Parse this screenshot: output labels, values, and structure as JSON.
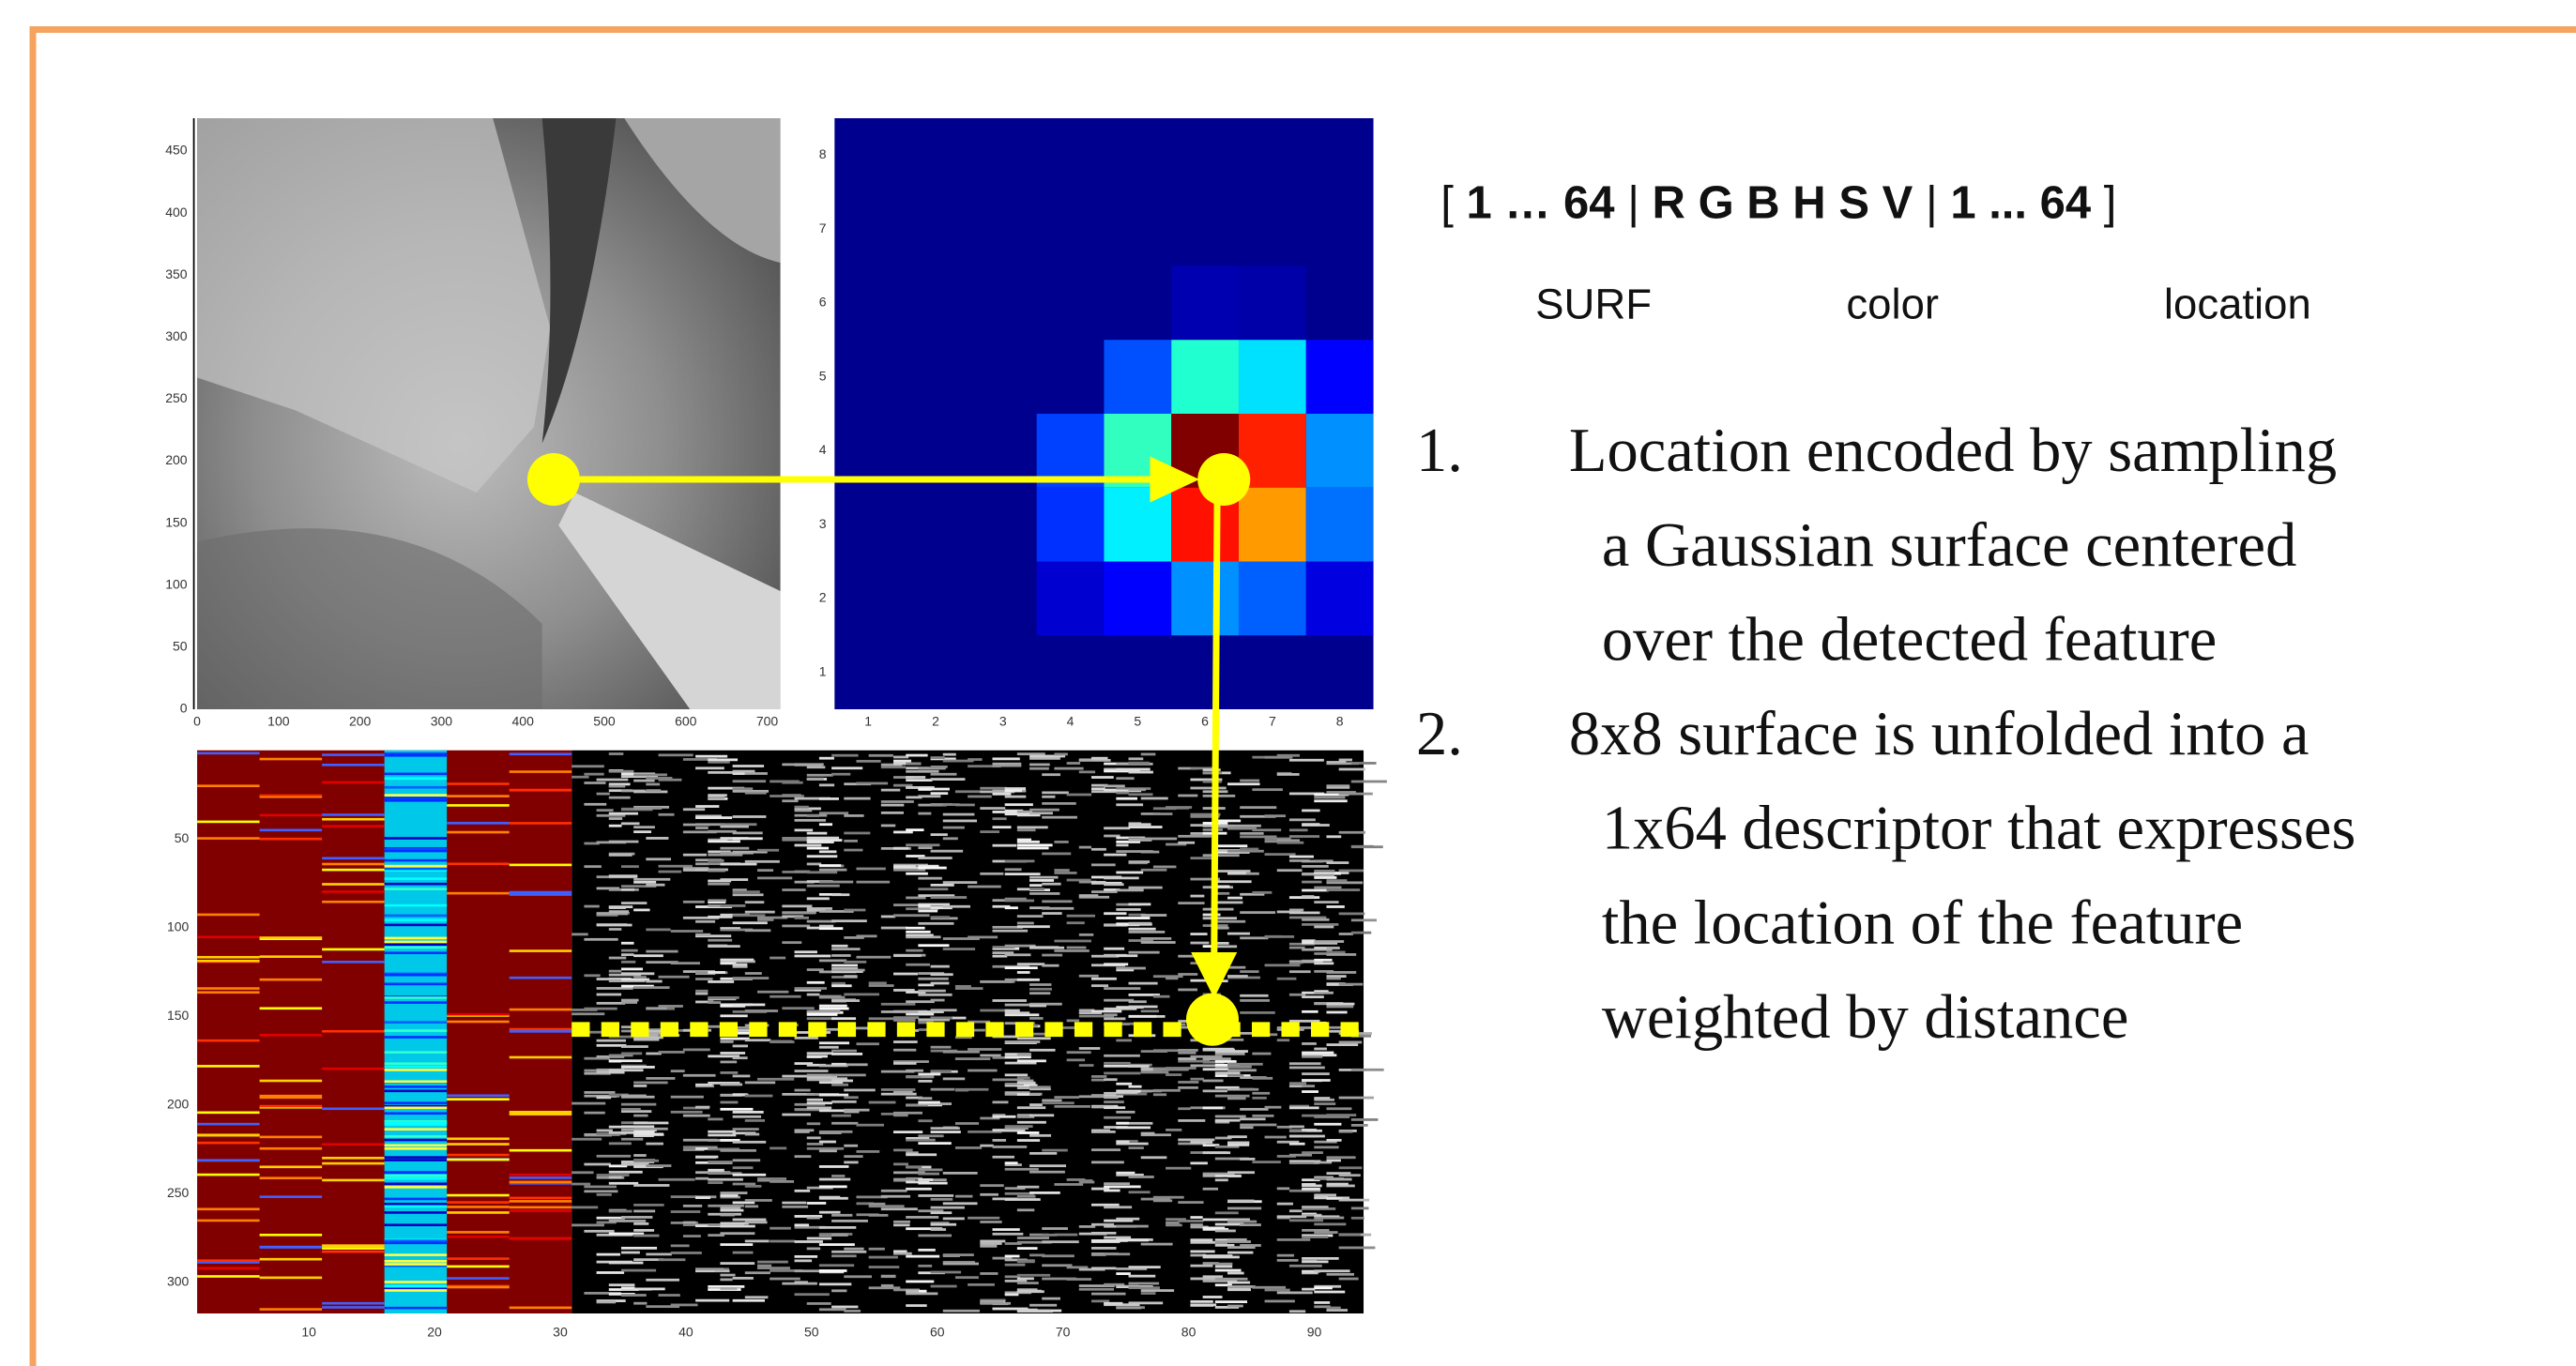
{
  "photo": {
    "yticks": [
      0,
      50,
      100,
      150,
      200,
      250,
      300,
      350,
      400,
      450
    ],
    "xticks": [
      0,
      100,
      200,
      300,
      400,
      500,
      600,
      700
    ]
  },
  "heatmap": {
    "yticks": [
      1,
      2,
      3,
      4,
      5,
      6,
      7,
      8
    ],
    "xticks": [
      1,
      2,
      3,
      4,
      5,
      6,
      7,
      8
    ]
  },
  "matrix": {
    "yticks": [
      50,
      100,
      150,
      200,
      250,
      300
    ],
    "xticks": [
      10,
      20,
      30,
      40,
      50,
      60,
      70,
      80,
      90
    ]
  },
  "descriptor": {
    "parts": [
      "[",
      "1 … 64",
      "|",
      "R G B H S V",
      "|",
      "1 ... 64",
      "]"
    ],
    "labels": [
      "SURF",
      "color",
      "location"
    ]
  },
  "list": [
    {
      "number": "1.",
      "lines": [
        "Location encoded by sampling",
        "a Gaussian surface centered",
        "over the detected feature"
      ]
    },
    {
      "number": "2.",
      "lines": [
        "8x8 surface is unfolded into a",
        "1x64 descriptor that expresses",
        "the location of the feature",
        "weighted by distance"
      ]
    }
  ]
}
